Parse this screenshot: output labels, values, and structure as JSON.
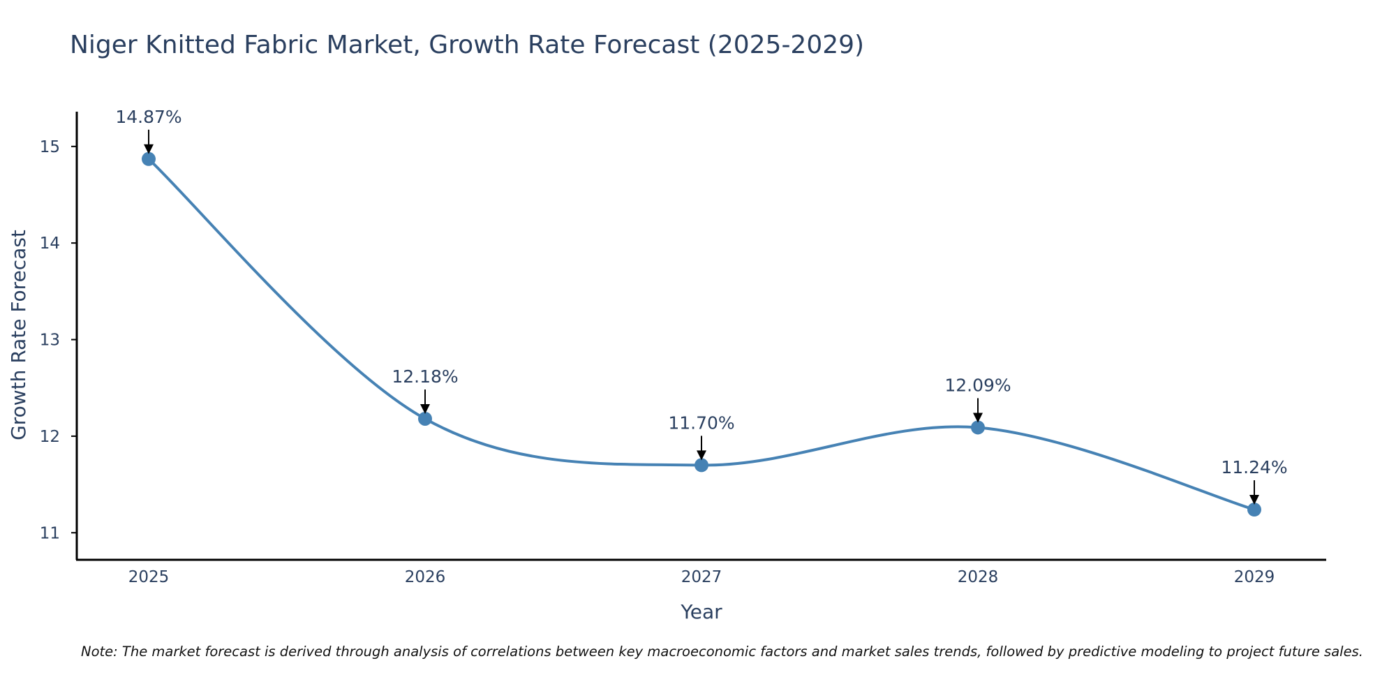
{
  "chart_data": {
    "type": "line",
    "title": "Niger Knitted Fabric Market, Growth Rate Forecast (2025-2029)",
    "xlabel": "Year",
    "ylabel": "Growth Rate Forecast",
    "categories": [
      "2025",
      "2026",
      "2027",
      "2028",
      "2029"
    ],
    "series": [
      {
        "name": "Growth Rate Forecast",
        "values": [
          14.87,
          12.18,
          11.7,
          12.09,
          11.24
        ],
        "labels": [
          "14.87%",
          "12.18%",
          "11.70%",
          "12.09%",
          "11.24%"
        ],
        "color": "#4682b4"
      }
    ],
    "ylim": [
      10.72,
      15.36
    ],
    "yticks": [
      11,
      12,
      13,
      14,
      15
    ],
    "grid": false,
    "line_shape": "spline",
    "note": "Note: The market forecast is derived through analysis of correlations between key macroeconomic factors and market sales trends, followed by predictive modeling to project future sales."
  },
  "colors": {
    "line": "#4682b4",
    "axis": "#000000",
    "text": "#2a3f5f"
  }
}
